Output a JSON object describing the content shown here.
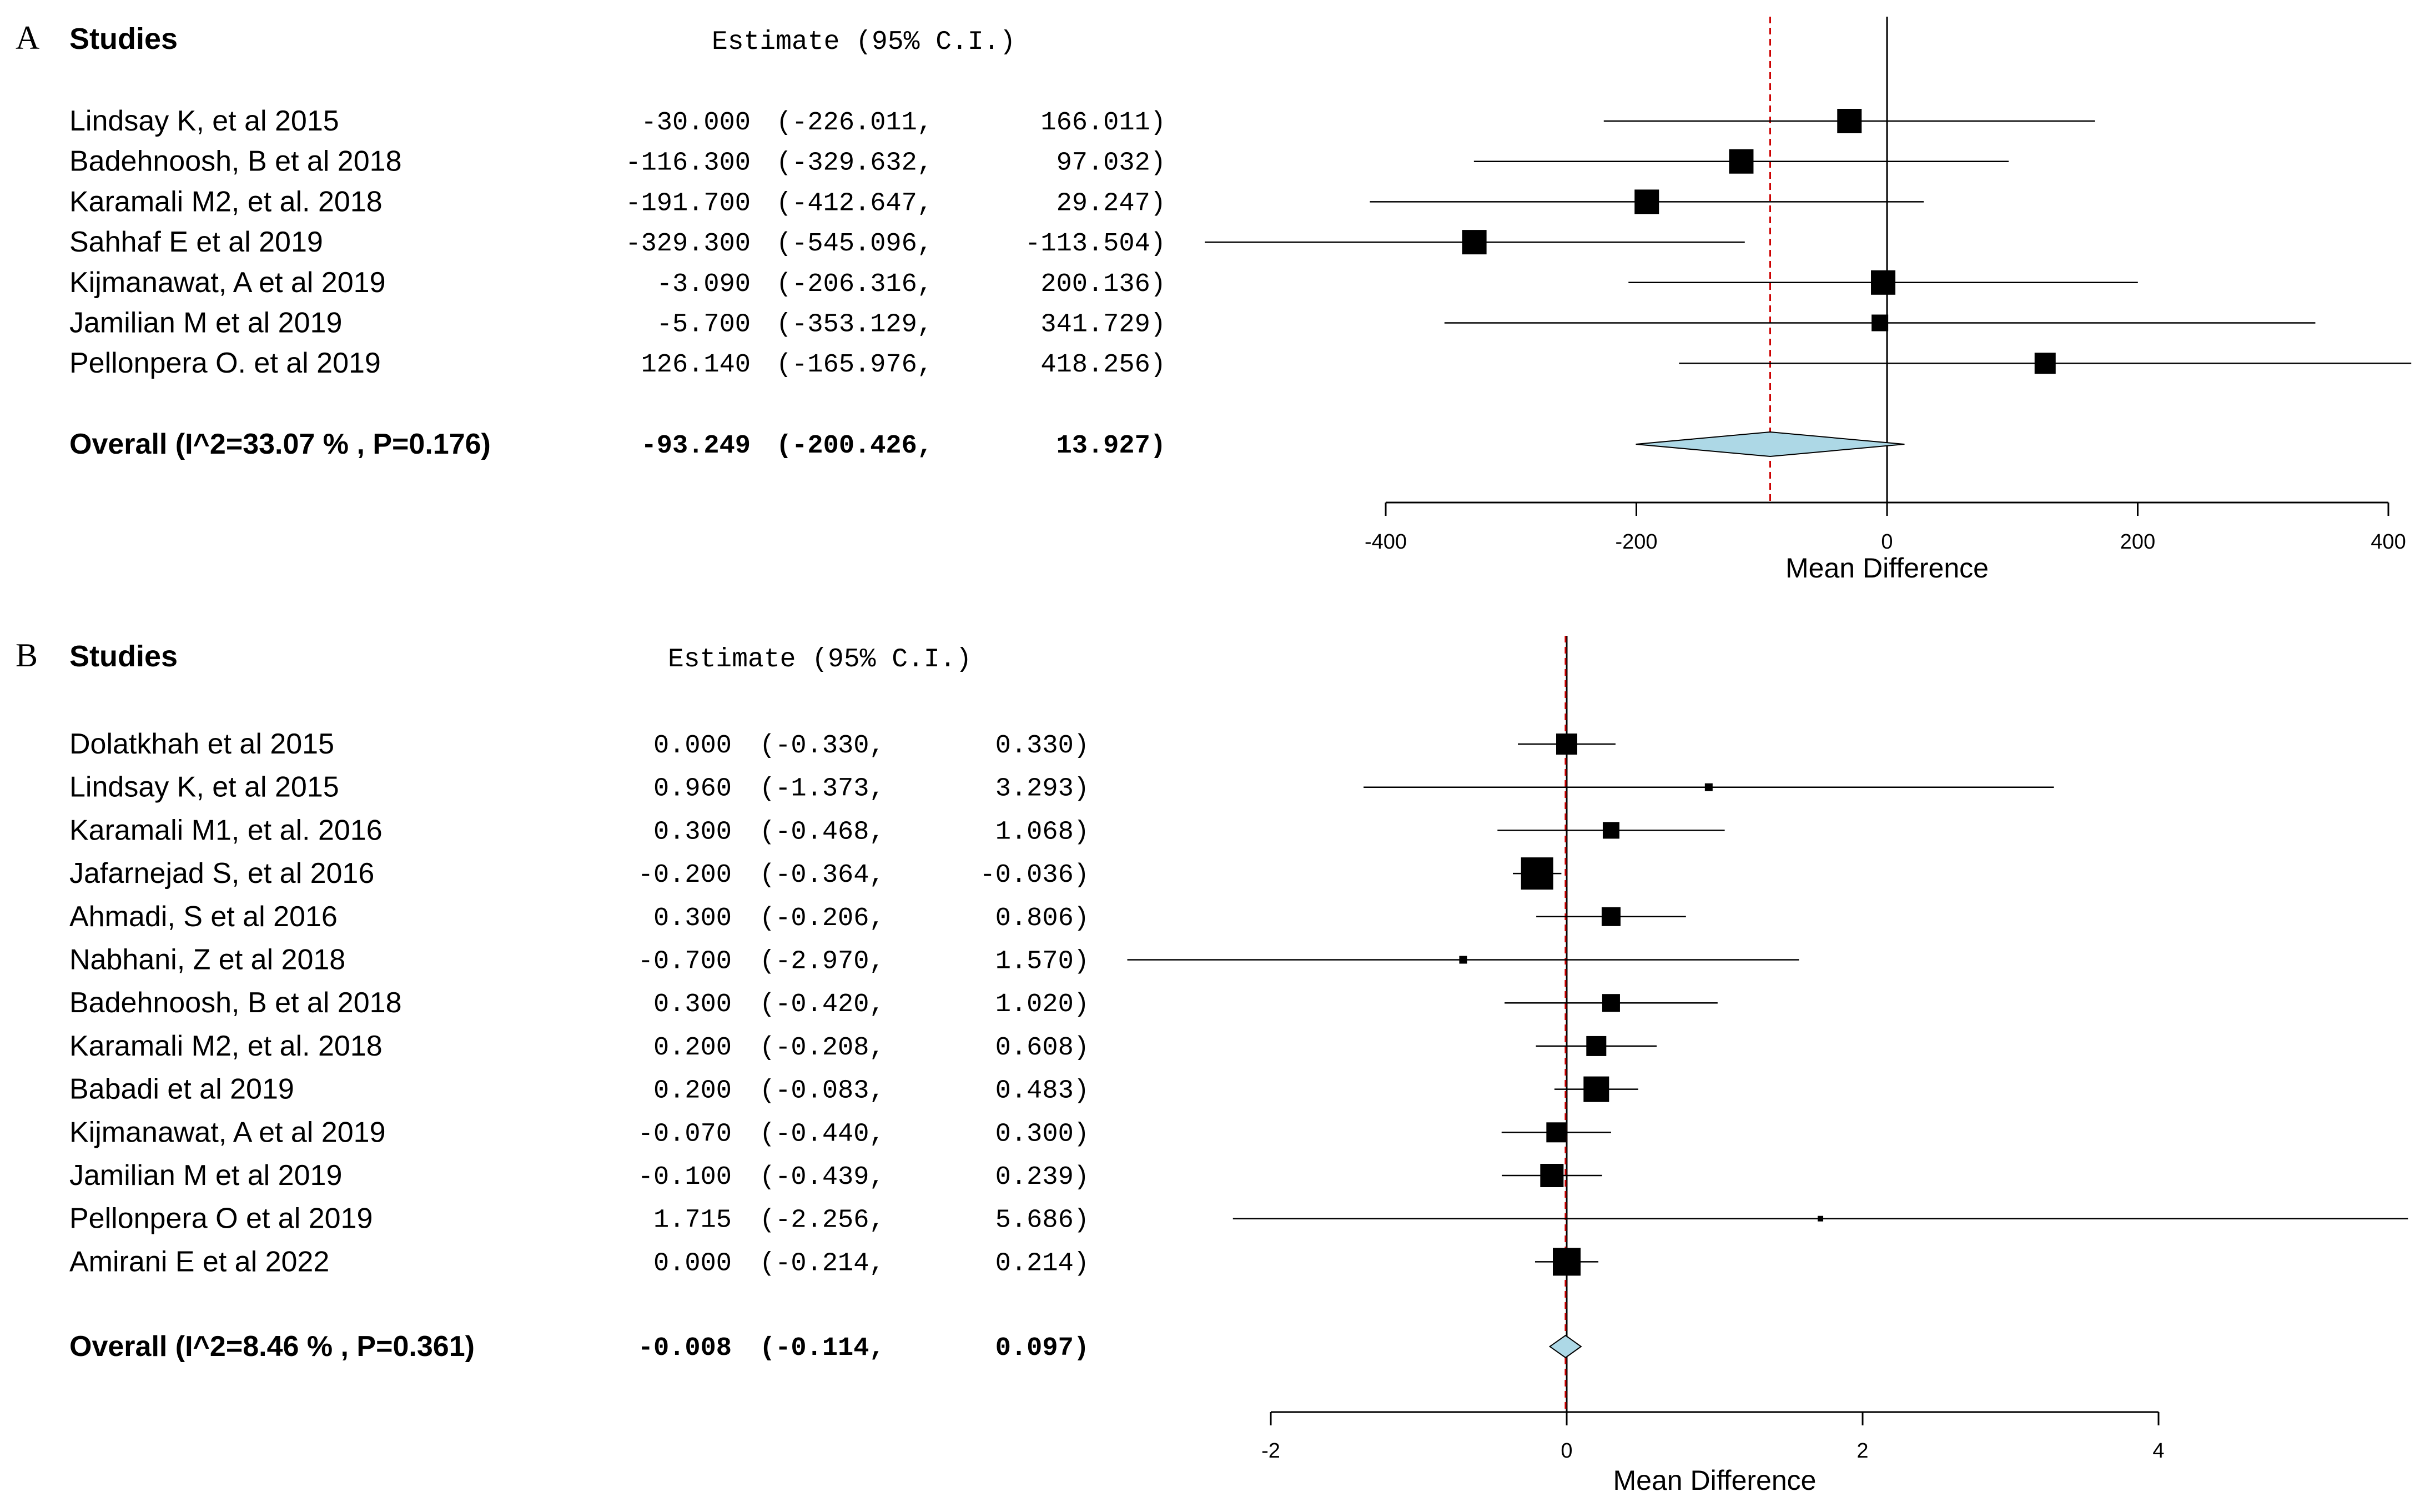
{
  "chart_data": [
    {
      "panel_label": "A",
      "type": "forest",
      "header_studies": "Studies",
      "header_estimate": "Estimate  (95% C.I.)",
      "xlabel": "Mean Difference",
      "xlim": [
        -400,
        400
      ],
      "ticks": [
        -400,
        -200,
        0,
        200,
        400
      ],
      "tick_labels": [
        "-400",
        "-200",
        "0",
        "200",
        "400"
      ],
      "reference_value": 0,
      "pooled_line": -93.249,
      "studies": [
        {
          "name": "Lindsay K, et al 2015",
          "estimate": -30.0,
          "lower": -226.011,
          "upper": 166.011,
          "est_text": "-30.000",
          "lo_text": "(-226.011,",
          "hi_text": "166.011)"
        },
        {
          "name": "Badehnoosh, B et al 2018",
          "estimate": -116.3,
          "lower": -329.632,
          "upper": 97.032,
          "est_text": "-116.300",
          "lo_text": "(-329.632,",
          "hi_text": "97.032)"
        },
        {
          "name": "Karamali M2, et al. 2018",
          "estimate": -191.7,
          "lower": -412.647,
          "upper": 29.247,
          "est_text": "-191.700",
          "lo_text": "(-412.647,",
          "hi_text": "29.247)"
        },
        {
          "name": "Sahhaf E et al 2019",
          "estimate": -329.3,
          "lower": -545.096,
          "upper": -113.504,
          "est_text": "-329.300",
          "lo_text": "(-545.096,",
          "hi_text": "-113.504)"
        },
        {
          "name": "Kijmanawat, A et al 2019",
          "estimate": -3.09,
          "lower": -206.316,
          "upper": 200.136,
          "est_text": "-3.090",
          "lo_text": "(-206.316,",
          "hi_text": "200.136)"
        },
        {
          "name": "Jamilian M et al 2019",
          "estimate": -5.7,
          "lower": -353.129,
          "upper": 341.729,
          "est_text": "-5.700",
          "lo_text": "(-353.129,",
          "hi_text": "341.729)"
        },
        {
          "name": "Pellonpera O. et al 2019",
          "estimate": 126.14,
          "lower": -165.976,
          "upper": 418.256,
          "est_text": "126.140",
          "lo_text": "(-165.976,",
          "hi_text": "418.256)"
        }
      ],
      "box_sizes": [
        44,
        44,
        44,
        44,
        44,
        30,
        38
      ],
      "overall": {
        "label": "Overall (I^2=33.07 % , P=0.176)",
        "estimate": -93.249,
        "lower": -200.426,
        "upper": 13.927,
        "est_text": "-93.249",
        "lo_text": "(-200.426,",
        "hi_text": "13.927)"
      }
    },
    {
      "panel_label": "B",
      "type": "forest",
      "header_studies": "Studies",
      "header_estimate": "Estimate  (95% C.I.)",
      "xlabel": "Mean Difference",
      "xlim": [
        -2,
        4
      ],
      "ticks": [
        -2,
        0,
        2,
        4
      ],
      "tick_labels": [
        "-2",
        "0",
        "2",
        "4"
      ],
      "reference_value": 0,
      "pooled_line": -0.008,
      "studies": [
        {
          "name": "Dolatkhah et al  2015",
          "estimate": 0.0,
          "lower": -0.33,
          "upper": 0.33,
          "est_text": "0.000",
          "lo_text": "(-0.330,",
          "hi_text": "0.330)"
        },
        {
          "name": "Lindsay K, et al 2015",
          "estimate": 0.96,
          "lower": -1.373,
          "upper": 3.293,
          "est_text": "0.960",
          "lo_text": "(-1.373,",
          "hi_text": "3.293)"
        },
        {
          "name": "Karamali M1, et al. 2016",
          "estimate": 0.3,
          "lower": -0.468,
          "upper": 1.068,
          "est_text": "0.300",
          "lo_text": "(-0.468,",
          "hi_text": "1.068)"
        },
        {
          "name": "Jafarnejad S, et al 2016",
          "estimate": -0.2,
          "lower": -0.364,
          "upper": -0.036,
          "est_text": "-0.200",
          "lo_text": "(-0.364,",
          "hi_text": "-0.036)"
        },
        {
          "name": "Ahmadi, S et al 2016",
          "estimate": 0.3,
          "lower": -0.206,
          "upper": 0.806,
          "est_text": "0.300",
          "lo_text": "(-0.206,",
          "hi_text": "0.806)"
        },
        {
          "name": "Nabhani, Z et al 2018",
          "estimate": -0.7,
          "lower": -2.97,
          "upper": 1.57,
          "est_text": "-0.700",
          "lo_text": "(-2.970,",
          "hi_text": "1.570)"
        },
        {
          "name": "Badehnoosh, B et al 2018",
          "estimate": 0.3,
          "lower": -0.42,
          "upper": 1.02,
          "est_text": "0.300",
          "lo_text": "(-0.420,",
          "hi_text": "1.020)"
        },
        {
          "name": "Karamali M2, et al. 2018",
          "estimate": 0.2,
          "lower": -0.208,
          "upper": 0.608,
          "est_text": "0.200",
          "lo_text": "(-0.208,",
          "hi_text": "0.608)"
        },
        {
          "name": "Babadi et al 2019",
          "estimate": 0.2,
          "lower": -0.083,
          "upper": 0.483,
          "est_text": "0.200",
          "lo_text": "(-0.083,",
          "hi_text": "0.483)"
        },
        {
          "name": "Kijmanawat, A et al 2019",
          "estimate": -0.07,
          "lower": -0.44,
          "upper": 0.3,
          "est_text": "-0.070",
          "lo_text": "(-0.440,",
          "hi_text": "0.300)"
        },
        {
          "name": "Jamilian M et al 2019",
          "estimate": -0.1,
          "lower": -0.439,
          "upper": 0.239,
          "est_text": "-0.100",
          "lo_text": "(-0.439,",
          "hi_text": "0.239)"
        },
        {
          "name": "Pellonpera O et al 2019",
          "estimate": 1.715,
          "lower": -2.256,
          "upper": 5.686,
          "est_text": "1.715",
          "lo_text": "(-2.256,",
          "hi_text": "5.686)"
        },
        {
          "name": "Amirani E et al 2022",
          "estimate": 0.0,
          "lower": -0.214,
          "upper": 0.214,
          "est_text": "0.000",
          "lo_text": "(-0.214,",
          "hi_text": "0.214)"
        }
      ],
      "box_sizes": [
        38,
        14,
        30,
        58,
        34,
        14,
        32,
        36,
        46,
        36,
        42,
        10,
        50
      ],
      "overall": {
        "label": "Overall (I^2=8.46 % , P=0.361)",
        "estimate": -0.008,
        "lower": -0.114,
        "upper": 0.097,
        "est_text": "-0.008",
        "lo_text": "(-0.114,",
        "hi_text": "0.097)"
      }
    }
  ],
  "colors": {
    "box": "#000000",
    "ci_line": "#000000",
    "axis": "#000000",
    "reference_line": "#000000",
    "pooled_line": "#cc0000",
    "diamond_fill": "#add8e6",
    "diamond_stroke": "#000000",
    "text": "#000000"
  }
}
